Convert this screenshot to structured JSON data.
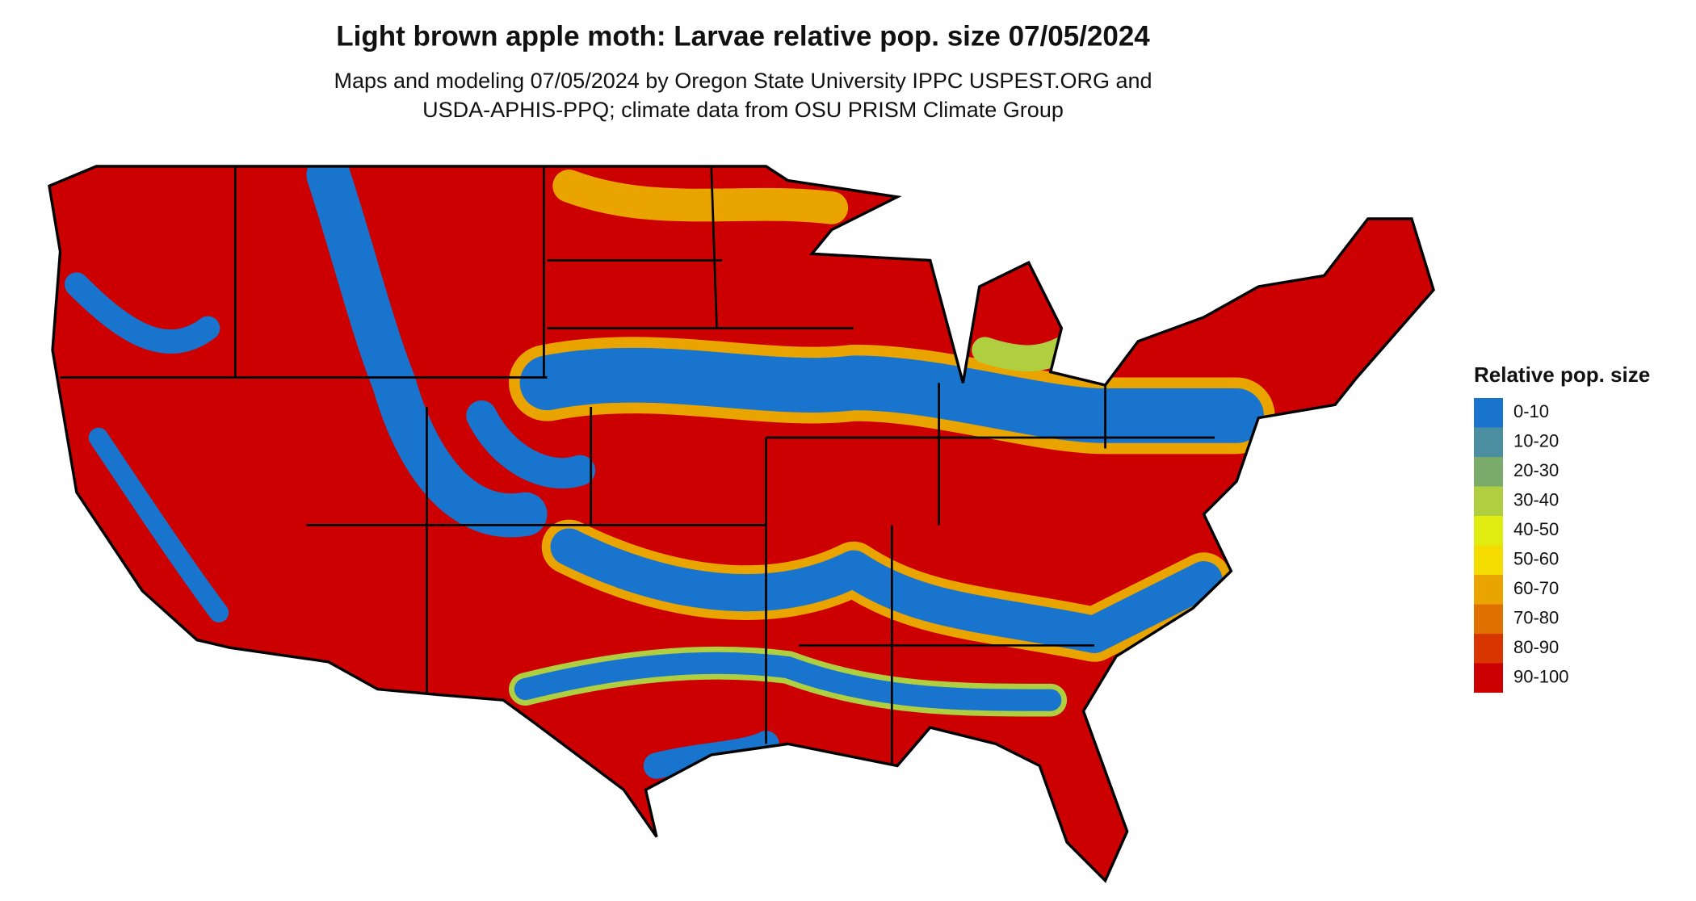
{
  "title": "Light brown apple moth: Larvae relative pop. size 07/05/2024",
  "subtitle": [
    "Maps and modeling 07/05/2024 by Oregon State University IPPC USPEST.ORG and",
    "USDA-APHIS-PPQ; climate data from OSU PRISM Climate Group"
  ],
  "legend": {
    "title": "Relative pop. size",
    "items": [
      {
        "label": "0-10",
        "color": "#1874cd"
      },
      {
        "label": "10-20",
        "color": "#4a8ea0"
      },
      {
        "label": "20-30",
        "color": "#7aab6a"
      },
      {
        "label": "30-40",
        "color": "#b0cf40"
      },
      {
        "label": "40-50",
        "color": "#e0ec10"
      },
      {
        "label": "50-60",
        "color": "#f5dc00"
      },
      {
        "label": "60-70",
        "color": "#eaa400"
      },
      {
        "label": "70-80",
        "color": "#e07000"
      },
      {
        "label": "80-90",
        "color": "#d83500"
      },
      {
        "label": "90-100",
        "color": "#cc0000"
      }
    ]
  }
}
